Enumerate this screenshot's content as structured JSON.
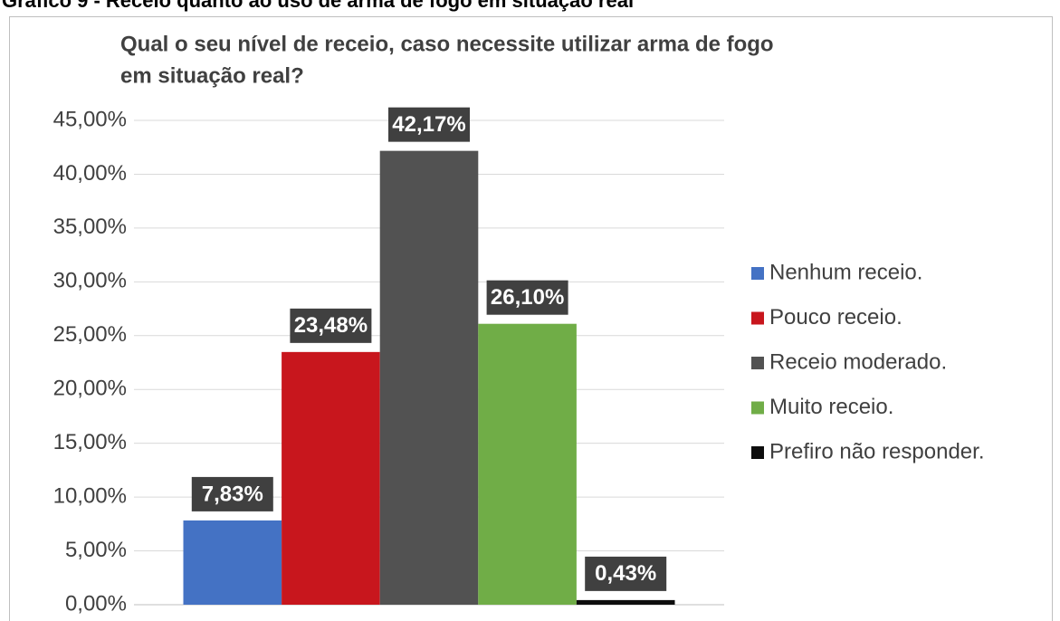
{
  "caption": "Gráfico 9 - Receio quanto ao uso de arma de fogo em situação real",
  "chart_data": {
    "type": "bar",
    "title": [
      "Qual o seu nível de receio, caso necessite utilizar arma de fogo",
      "em situação real?"
    ],
    "series": [
      {
        "name": "Nenhum receio.",
        "color": "#4472c4",
        "values": [
          7.83
        ],
        "value_labels": [
          "7,83%"
        ]
      },
      {
        "name": "Pouco receio.",
        "color": "#c8161d",
        "values": [
          23.48
        ],
        "value_labels": [
          "23,48%"
        ]
      },
      {
        "name": "Receio moderado.",
        "color": "#525252",
        "values": [
          42.17
        ],
        "value_labels": [
          "42,17%"
        ]
      },
      {
        "name": "Muito receio.",
        "color": "#70ad47",
        "values": [
          26.1
        ],
        "value_labels": [
          "26,10%"
        ]
      },
      {
        "name": "Prefiro não responder.",
        "color": "#0d0d0d",
        "values": [
          0.43
        ],
        "value_labels": [
          "0,43%"
        ]
      }
    ],
    "ylim": [
      0,
      45
    ],
    "yticks": [
      {
        "value": 0,
        "label": "0,00%"
      },
      {
        "value": 5,
        "label": "5,00%"
      },
      {
        "value": 10,
        "label": "10,00%"
      },
      {
        "value": 15,
        "label": "15,00%"
      },
      {
        "value": 20,
        "label": "20,00%"
      },
      {
        "value": 25,
        "label": "25,00%"
      },
      {
        "value": 30,
        "label": "30,00%"
      },
      {
        "value": 35,
        "label": "35,00%"
      },
      {
        "value": 40,
        "label": "40,00%"
      },
      {
        "value": 45,
        "label": "45,00%"
      }
    ],
    "grid": true,
    "legend": "right"
  }
}
